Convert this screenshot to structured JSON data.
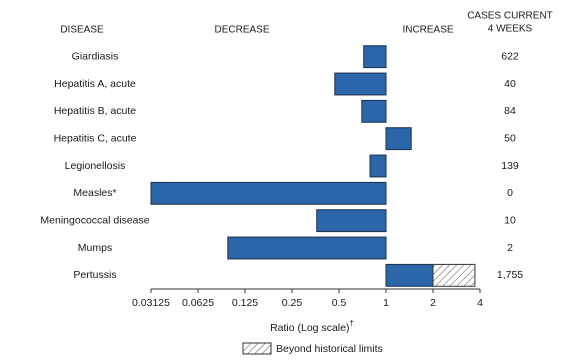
{
  "chart_data": {
    "type": "bar",
    "orientation": "horizontal",
    "log_scale": true,
    "base": 1,
    "headers": {
      "disease": "DISEASE",
      "decrease": "DECREASE",
      "increase": "INCREASE",
      "cases": [
        "CASES CURRENT",
        "4 WEEKS"
      ]
    },
    "categories": [
      "Giardiasis",
      "Hepatitis A, acute",
      "Hepatitis B, acute",
      "Hepatitis C, acute",
      "Legionellosis",
      "Measles*",
      "Meningococcal disease",
      "Mumps",
      "Pertussis"
    ],
    "values": [
      0.72,
      0.47,
      0.7,
      1.45,
      0.79,
      0.03125,
      0.36,
      0.097,
      3.71
    ],
    "color": "#2b66ab",
    "historical_limit": 2,
    "cases": {
      "values": [
        622,
        40,
        84,
        50,
        139,
        0,
        10,
        2,
        1755
      ],
      "value_labels": {
        "8": "1,755"
      }
    },
    "xlim": [
      0.03125,
      4
    ],
    "xticks": [
      0.03125,
      0.0625,
      0.125,
      0.25,
      0.5,
      1,
      2,
      4
    ],
    "xlabel": "Ratio (Log scale)",
    "xlabel_mark": "†",
    "legend": "Beyond historical limits"
  }
}
